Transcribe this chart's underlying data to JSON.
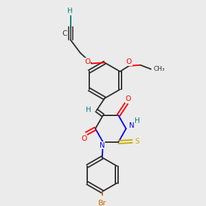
{
  "bg_color": "#ebebeb",
  "atom_colors": {
    "O": "#ff0000",
    "N": "#0000ff",
    "S": "#ccaa00",
    "Br": "#cc6600",
    "H": "#008080",
    "C": "#303030"
  }
}
